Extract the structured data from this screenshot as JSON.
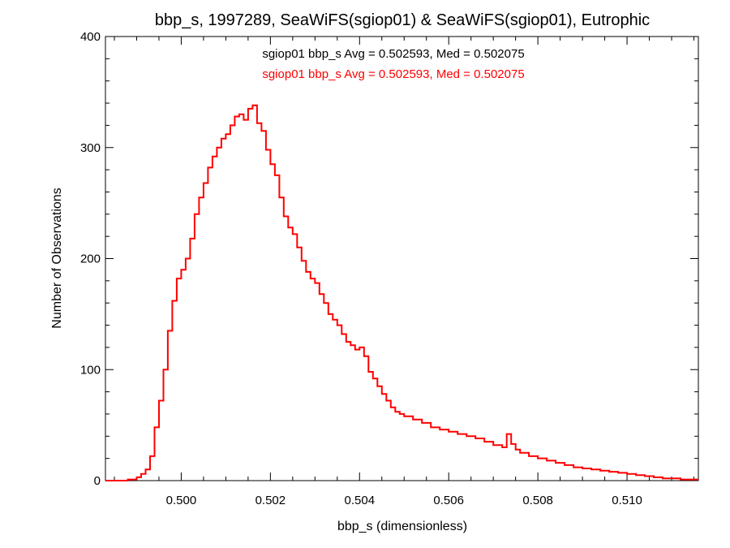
{
  "chart_data": {
    "type": "histogram",
    "title": "bbp_s, 1997289, SeaWiFS(sgiop01) & SeaWiFS(sgiop01), Eutrophic",
    "xlabel": "bbp_s (dimensionless)",
    "ylabel": "Number of Observations",
    "xlim": [
      0.4983,
      0.5116
    ],
    "ylim": [
      0,
      400
    ],
    "xticks": [
      0.5,
      0.502,
      0.504,
      0.506,
      0.508,
      0.51
    ],
    "xtick_labels": [
      "0.500",
      "0.502",
      "0.504",
      "0.506",
      "0.508",
      "0.510"
    ],
    "yticks": [
      0,
      100,
      200,
      300,
      400
    ],
    "ytick_labels": [
      "0",
      "100",
      "200",
      "300",
      "400"
    ],
    "grid": false,
    "annotations": [
      {
        "text": "sgiop01 bbp_s Avg = 0.502593, Med = 0.502075",
        "color": "#000000"
      },
      {
        "text": "sgiop01 bbp_s Avg = 0.502593, Med = 0.502075",
        "color": "#ff0000"
      }
    ],
    "series": [
      {
        "color": "#ff0000",
        "step": true,
        "x": [
          0.4983,
          0.4988,
          0.499,
          0.4991,
          0.4992,
          0.4993,
          0.4994,
          0.4995,
          0.4996,
          0.4997,
          0.4998,
          0.4999,
          0.5,
          0.5001,
          0.5002,
          0.5003,
          0.5004,
          0.5005,
          0.5006,
          0.5007,
          0.5008,
          0.5009,
          0.501,
          0.5011,
          0.5012,
          0.5013,
          0.5014,
          0.5015,
          0.5016,
          0.5017,
          0.5018,
          0.5019,
          0.502,
          0.5021,
          0.5022,
          0.5023,
          0.5024,
          0.5025,
          0.5026,
          0.5027,
          0.5028,
          0.5029,
          0.503,
          0.5031,
          0.5032,
          0.5033,
          0.5034,
          0.5035,
          0.5036,
          0.5037,
          0.5038,
          0.5039,
          0.504,
          0.5041,
          0.5042,
          0.5043,
          0.5044,
          0.5045,
          0.5046,
          0.5047,
          0.5048,
          0.5049,
          0.505,
          0.5052,
          0.5054,
          0.5056,
          0.5058,
          0.506,
          0.5062,
          0.5064,
          0.5066,
          0.5068,
          0.507,
          0.5072,
          0.5073,
          0.5074,
          0.5075,
          0.5076,
          0.5078,
          0.508,
          0.5082,
          0.5084,
          0.5086,
          0.5088,
          0.509,
          0.5092,
          0.5094,
          0.5096,
          0.5098,
          0.51,
          0.5102,
          0.5104,
          0.5106,
          0.5108,
          0.511,
          0.5112,
          0.5114
        ],
        "y": [
          0,
          1,
          3,
          6,
          10,
          22,
          48,
          72,
          100,
          135,
          162,
          182,
          190,
          200,
          218,
          240,
          255,
          268,
          282,
          292,
          300,
          308,
          312,
          320,
          328,
          330,
          325,
          335,
          338,
          322,
          315,
          298,
          285,
          275,
          255,
          238,
          228,
          222,
          210,
          198,
          188,
          182,
          178,
          168,
          160,
          150,
          145,
          140,
          132,
          125,
          122,
          118,
          120,
          112,
          98,
          92,
          85,
          78,
          72,
          66,
          62,
          60,
          58,
          55,
          52,
          48,
          46,
          44,
          42,
          40,
          38,
          35,
          32,
          30,
          42,
          33,
          28,
          25,
          22,
          20,
          18,
          16,
          14,
          12,
          11,
          10,
          9,
          8,
          7,
          6,
          5,
          4,
          3,
          2,
          2,
          1,
          1
        ]
      }
    ]
  }
}
